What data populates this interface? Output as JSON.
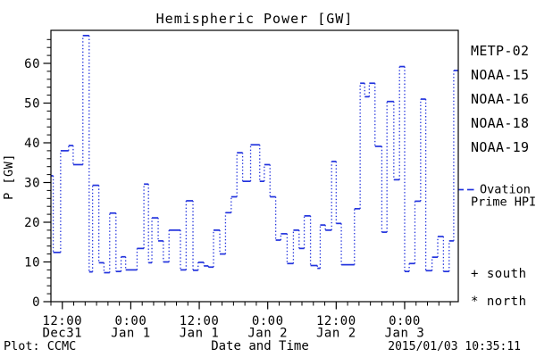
{
  "title": "Hemispheric Power [GW]",
  "axes": {
    "y_label": "P [GW]",
    "x_label": "Date and Time"
  },
  "footer": {
    "source": "Plot: CCMC",
    "timestamp": "2015/01/03 10:35:11"
  },
  "legend": {
    "satellites": [
      {
        "label": "METP-02",
        "color": "#000000"
      },
      {
        "label": "NOAA-15",
        "color": "#2233dd"
      },
      {
        "label": "NOAA-16",
        "color": "#33aaff"
      },
      {
        "label": "NOAA-18",
        "color": "#77ee88"
      },
      {
        "label": "NOAA-19",
        "color": "#ff9922"
      }
    ],
    "ovation": {
      "line1": "Ovation",
      "line2": "Prime HPI",
      "color": "#2233dd"
    },
    "hemisphere_markers": [
      {
        "symbol": "+",
        "label": "south"
      },
      {
        "symbol": "*",
        "label": "north"
      }
    ]
  },
  "chart_data": {
    "type": "line",
    "subtype": "step-post-dotted",
    "title": "Hemispheric Power [GW]",
    "xlabel": "Date and Time",
    "ylabel": "P [GW]",
    "ylim": [
      0,
      68
    ],
    "grid": false,
    "legend_position": "right",
    "y_major_ticks": [
      0,
      10,
      20,
      30,
      40,
      50,
      60
    ],
    "y_minor_step": 2,
    "x_minor_step_hours": 2,
    "x_range_hours": [
      10,
      81.4
    ],
    "x_ticks": [
      {
        "hour": 12,
        "time": "12:00",
        "date": "Dec31"
      },
      {
        "hour": 24,
        "time": "0:00",
        "date": "Jan 1"
      },
      {
        "hour": 36,
        "time": "12:00",
        "date": "Jan 1"
      },
      {
        "hour": 48,
        "time": "0:00",
        "date": "Jan 2"
      },
      {
        "hour": 60,
        "time": "12:00",
        "date": "Jan 2"
      },
      {
        "hour": 72,
        "time": "0:00",
        "date": "Jan 3"
      }
    ],
    "series": [
      {
        "name": "Ovation Prime HPI",
        "color": "#2233dd",
        "style": "stepped-dotted",
        "points_hour_gw": [
          [
            10.0,
            31.7
          ],
          [
            10.4,
            12.4
          ],
          [
            11.7,
            38.0
          ],
          [
            13.1,
            39.3
          ],
          [
            13.9,
            34.5
          ],
          [
            15.6,
            67.0
          ],
          [
            16.7,
            7.5
          ],
          [
            17.3,
            29.3
          ],
          [
            18.4,
            9.8
          ],
          [
            19.3,
            7.3
          ],
          [
            20.3,
            22.3
          ],
          [
            21.4,
            7.6
          ],
          [
            22.3,
            11.3
          ],
          [
            23.1,
            8.0
          ],
          [
            25.1,
            13.4
          ],
          [
            26.3,
            29.6
          ],
          [
            27.1,
            9.8
          ],
          [
            27.7,
            21.1
          ],
          [
            28.8,
            15.3
          ],
          [
            29.7,
            10.0
          ],
          [
            30.7,
            18.0
          ],
          [
            32.7,
            8.0
          ],
          [
            33.7,
            25.4
          ],
          [
            34.9,
            7.9
          ],
          [
            35.8,
            9.9
          ],
          [
            36.8,
            9.0
          ],
          [
            37.6,
            8.7
          ],
          [
            38.5,
            18.0
          ],
          [
            39.6,
            12.0
          ],
          [
            40.6,
            22.4
          ],
          [
            41.6,
            26.4
          ],
          [
            42.6,
            37.5
          ],
          [
            43.6,
            30.3
          ],
          [
            45.0,
            39.5
          ],
          [
            46.6,
            30.3
          ],
          [
            47.4,
            34.5
          ],
          [
            48.4,
            26.4
          ],
          [
            49.4,
            15.5
          ],
          [
            50.3,
            17.1
          ],
          [
            51.4,
            9.6
          ],
          [
            52.5,
            18.0
          ],
          [
            53.5,
            13.4
          ],
          [
            54.4,
            21.6
          ],
          [
            55.5,
            9.1
          ],
          [
            56.7,
            8.4
          ],
          [
            57.2,
            19.3
          ],
          [
            58.1,
            18.0
          ],
          [
            59.2,
            35.3
          ],
          [
            60.0,
            19.7
          ],
          [
            60.9,
            9.3
          ],
          [
            63.2,
            23.4
          ],
          [
            64.2,
            55.0
          ],
          [
            65.0,
            51.6
          ],
          [
            65.8,
            55.0
          ],
          [
            66.8,
            39.1
          ],
          [
            68.0,
            17.5
          ],
          [
            68.9,
            50.4
          ],
          [
            70.1,
            30.7
          ],
          [
            71.1,
            59.2
          ],
          [
            72.0,
            7.6
          ],
          [
            72.8,
            9.6
          ],
          [
            73.8,
            25.3
          ],
          [
            74.8,
            51.0
          ],
          [
            75.7,
            7.8
          ],
          [
            76.8,
            11.2
          ],
          [
            77.8,
            16.4
          ],
          [
            78.8,
            7.6
          ],
          [
            79.8,
            15.3
          ],
          [
            80.6,
            58.2
          ],
          [
            81.4,
            58.2
          ]
        ]
      }
    ]
  }
}
